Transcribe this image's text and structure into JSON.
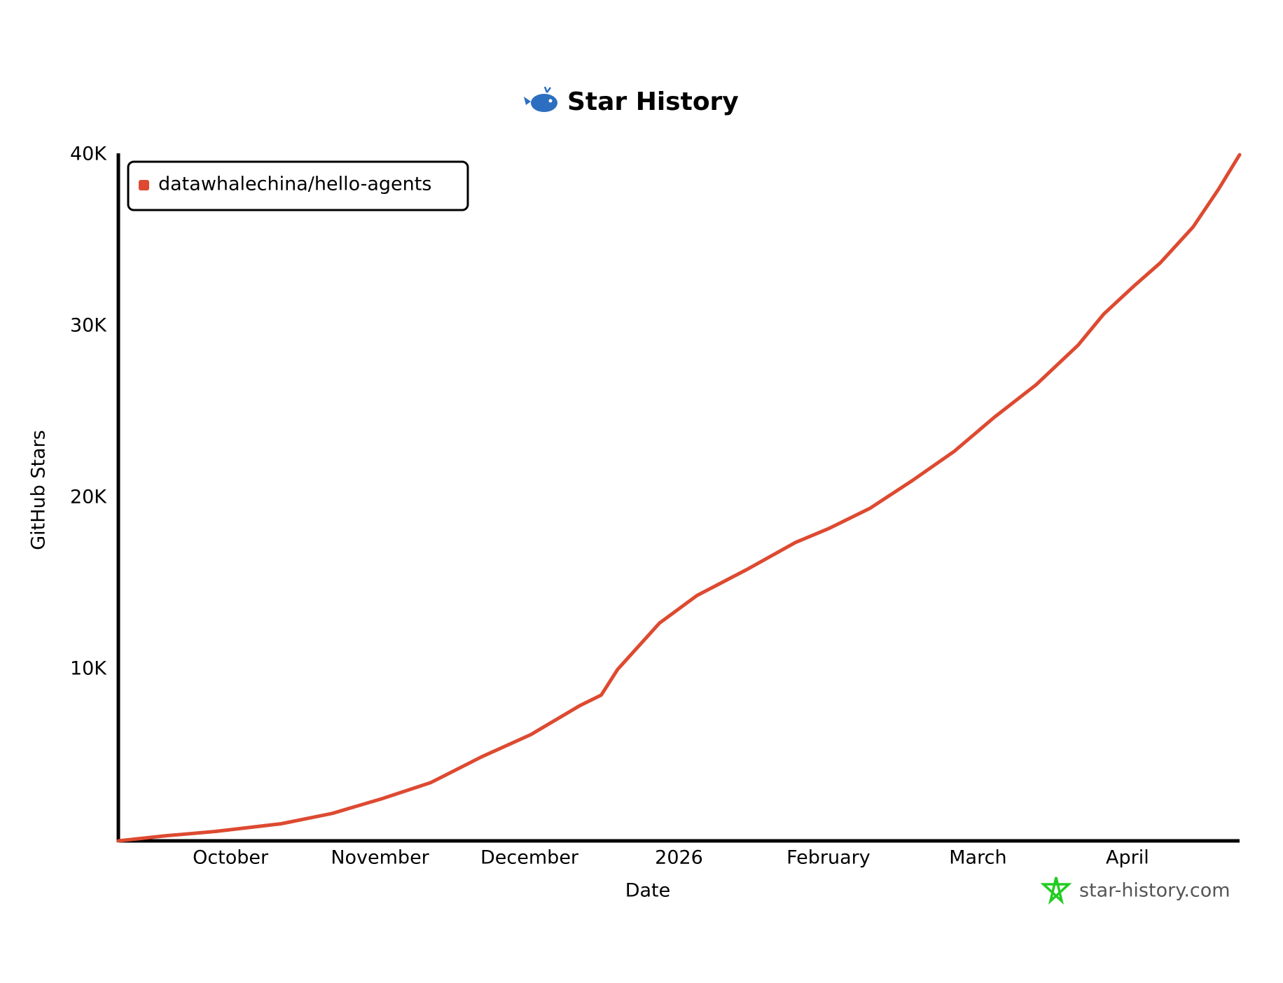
{
  "chart_data": {
    "type": "line",
    "title": "Star History",
    "x_label": "Date",
    "y_label": "GitHub Stars",
    "watermark": "star-history.com",
    "legend": "top-left",
    "xlim": [
      9.25,
      16.75
    ],
    "xticks": [
      {
        "value": 10,
        "label": "October"
      },
      {
        "value": 11,
        "label": "November"
      },
      {
        "value": 12,
        "label": "December"
      },
      {
        "value": 13,
        "label": "2026"
      },
      {
        "value": 14,
        "label": "February"
      },
      {
        "value": 15,
        "label": "March"
      },
      {
        "value": 16,
        "label": "April"
      }
    ],
    "ylim": [
      0,
      40000
    ],
    "yticks": [
      {
        "value": 10000,
        "label": "10K"
      },
      {
        "value": 20000,
        "label": "20K"
      },
      {
        "value": 30000,
        "label": "30K"
      },
      {
        "value": 40000,
        "label": "40K"
      }
    ],
    "x": [
      9.25,
      9.57,
      9.9,
      10.34,
      10.68,
      11.01,
      11.34,
      11.68,
      12.01,
      12.34,
      12.48,
      12.59,
      12.87,
      13.12,
      13.45,
      13.78,
      14.0,
      14.28,
      14.56,
      14.84,
      15.11,
      15.39,
      15.67,
      15.84,
      16.05,
      16.22,
      16.44,
      16.61,
      16.75
    ],
    "series": [
      {
        "name": "datawhalechina/hello-agents",
        "color": "#dd4a31",
        "values": [
          0,
          300,
          550,
          1000,
          1600,
          2450,
          3400,
          4900,
          6200,
          7900,
          8500,
          10000,
          12700,
          14300,
          15800,
          17400,
          18200,
          19400,
          21000,
          22700,
          24700,
          26600,
          28900,
          30700,
          32400,
          33700,
          35800,
          38000,
          40000
        ]
      }
    ]
  }
}
